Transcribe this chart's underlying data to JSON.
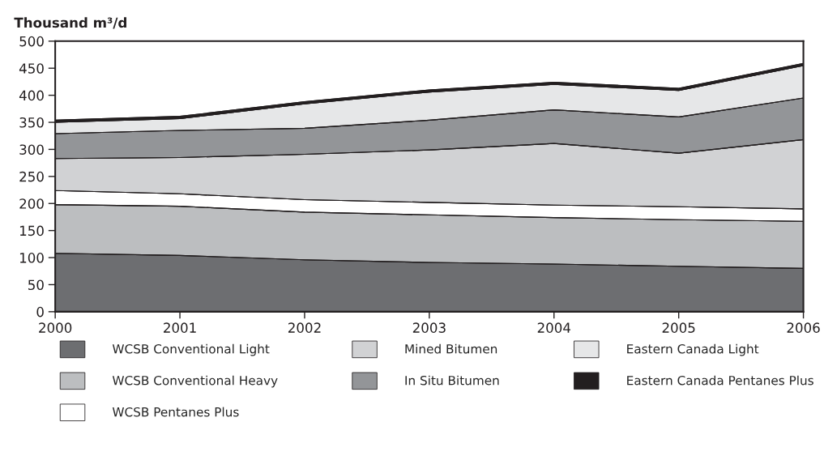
{
  "chart_data": {
    "type": "area",
    "stacked": true,
    "ylabel": "Thousand m³/d",
    "x": [
      2000,
      2001,
      2002,
      2003,
      2004,
      2005,
      2006
    ],
    "xlim": [
      2000,
      2006
    ],
    "xticks": [
      2000,
      2001,
      2002,
      2003,
      2004,
      2005,
      2006
    ],
    "ylim": [
      0,
      500
    ],
    "yticks": [
      0,
      50,
      100,
      150,
      200,
      250,
      300,
      350,
      400,
      450,
      500
    ],
    "grid": false,
    "legend": "bottom",
    "series": [
      {
        "name": "WCSB Conventional Light",
        "color": "#6d6e71",
        "values": [
          108,
          104,
          96,
          91,
          88,
          84,
          80
        ]
      },
      {
        "name": "WCSB Conventional Heavy",
        "color": "#bcbec0",
        "values": [
          90,
          91,
          88,
          88,
          86,
          86,
          87
        ]
      },
      {
        "name": "WCSB Pentanes Plus",
        "color": "#ffffff",
        "values": [
          26,
          23,
          23,
          23,
          23,
          24,
          23
        ]
      },
      {
        "name": "Mined Bitumen",
        "color": "#d1d2d4",
        "values": [
          59,
          67,
          84,
          97,
          114,
          99,
          128
        ]
      },
      {
        "name": "In Situ Bitumen",
        "color": "#939598",
        "values": [
          46,
          50,
          48,
          55,
          62,
          67,
          77
        ]
      },
      {
        "name": "Eastern Canada Light",
        "color": "#e6e7e8",
        "values": [
          21,
          22,
          45,
          52,
          47,
          49,
          60
        ]
      },
      {
        "name": "Eastern Canada Pentanes Plus",
        "color": "#231f20",
        "values": [
          4,
          4,
          4,
          4,
          4,
          4,
          4
        ]
      }
    ]
  }
}
